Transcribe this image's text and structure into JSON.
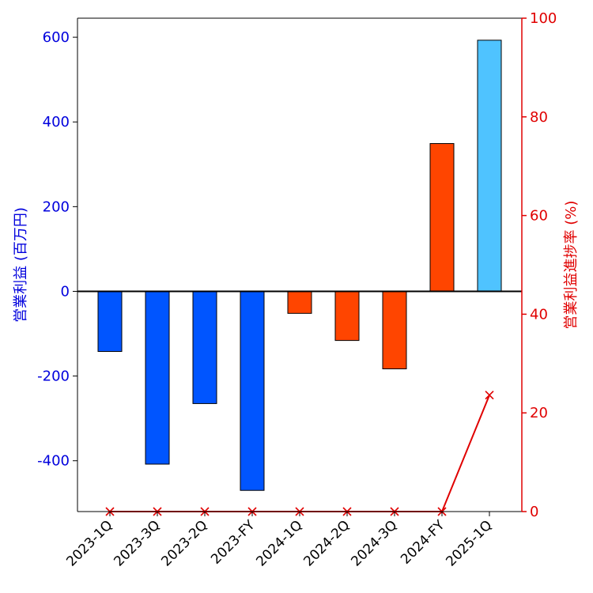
{
  "chart_data": {
    "type": "bar",
    "categories": [
      "2023-1Q",
      "2023-3Q",
      "2023-2Q",
      "2023-FY",
      "2024-1Q",
      "2024-2Q",
      "2024-3Q",
      "2024-FY",
      "2025-1Q"
    ],
    "series": [
      {
        "name": "",
        "kind": "bar",
        "axis": "left",
        "values": [
          -142,
          -408,
          -265,
          -470,
          -52,
          -116,
          -183,
          349,
          593
        ],
        "colors": [
          "#0055ff",
          "#0055ff",
          "#0055ff",
          "#0055ff",
          "#ff4500",
          "#ff4500",
          "#ff4500",
          "#ff4500",
          "#4fc3ff"
        ]
      },
      {
        "name": "",
        "kind": "line",
        "axis": "right",
        "marker": "x",
        "color": "#e00000",
        "values": [
          0,
          0,
          0,
          0,
          0,
          0,
          0,
          0,
          23.6
        ]
      }
    ],
    "ylabel_left": "営業利益 (百万円)",
    "ylabel_right": "営業利益進捗率 (%)",
    "ylim_left": [
      -520,
      645
    ],
    "ylim_right": [
      0,
      100
    ],
    "yticks_left": [
      -400,
      -200,
      0,
      200,
      400,
      600
    ],
    "yticks_left_labels": [
      "-400",
      "-200",
      "0",
      "200",
      "400",
      "600"
    ],
    "yticks_right": [
      0,
      20,
      40,
      60,
      80,
      100
    ],
    "yticks_right_labels": [
      "0",
      "20",
      "40",
      "60",
      "80",
      "100"
    ],
    "left_axis_color": "#0000dd",
    "right_axis_color": "#e00000",
    "grid": false,
    "legend": "none"
  }
}
